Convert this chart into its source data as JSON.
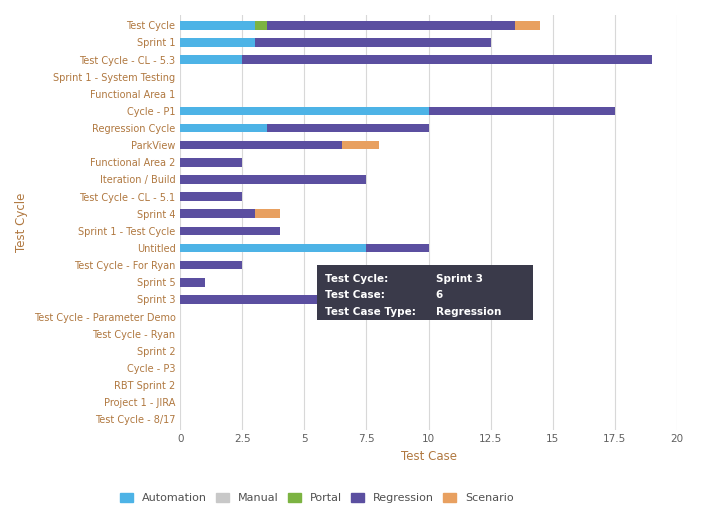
{
  "categories": [
    "Test Cycle",
    "Sprint 1",
    "Test Cycle - CL - 5.3",
    "Sprint 1 - System Testing",
    "Functional Area 1",
    "Cycle - P1",
    "Regression Cycle",
    "ParkView",
    "Functional Area 2",
    "Iteration / Build",
    "Test Cycle - CL - 5.1",
    "Sprint 4",
    "Sprint 1 - Test Cycle",
    "Untitled",
    "Test Cycle - For Ryan",
    "Sprint 5",
    "Sprint 3",
    "Test Cycle - Parameter Demo",
    "Test Cycle - Ryan",
    "Sprint 2",
    "Cycle - P3",
    "RBT Sprint 2",
    "Project 1 - JIRA",
    "Test Cycle - 8/17"
  ],
  "series": {
    "Automation": [
      3.0,
      3.0,
      2.5,
      0,
      0,
      10.0,
      3.5,
      0,
      0,
      0,
      0,
      0,
      0,
      7.5,
      0,
      0,
      0,
      0,
      0,
      0,
      0,
      0,
      0,
      0
    ],
    "Manual": [
      0,
      0,
      0,
      0,
      0,
      0,
      0,
      0,
      0,
      0,
      0,
      0,
      0,
      0,
      0,
      0,
      0,
      0,
      0,
      0,
      0,
      0,
      0,
      0
    ],
    "Portal": [
      0.5,
      0,
      0,
      0,
      0,
      0,
      0,
      0,
      0,
      0,
      0,
      0,
      0,
      0,
      0,
      0,
      0,
      0,
      0,
      0,
      0,
      0,
      0,
      0
    ],
    "Regression": [
      10.0,
      9.5,
      16.5,
      0,
      0,
      7.5,
      6.5,
      6.5,
      2.5,
      7.5,
      2.5,
      3.0,
      4.0,
      2.5,
      2.5,
      1.0,
      6.0,
      0,
      0,
      0,
      0,
      0,
      0,
      0
    ],
    "Scenario": [
      1.0,
      0,
      0,
      0,
      0,
      0,
      0,
      1.5,
      0,
      0,
      0,
      1.0,
      0,
      0,
      0,
      0,
      0,
      0,
      0,
      0,
      0,
      0,
      0,
      0
    ]
  },
  "colors": {
    "Automation": "#4db3e6",
    "Manual": "#c8c8c8",
    "Portal": "#7cb342",
    "Regression": "#5b4fa0",
    "Scenario": "#e8a060"
  },
  "xlabel": "Test Case",
  "ylabel": "Test Cycle",
  "xlim": [
    0,
    20
  ],
  "xticks": [
    0,
    2.5,
    5,
    7.5,
    10,
    12.5,
    15,
    17.5,
    20
  ],
  "xtick_labels": [
    "0",
    "2.5",
    "5",
    "7.5",
    "10",
    "12.5",
    "15",
    "17.5",
    "20"
  ],
  "axis_label_color": "#b07840",
  "y_tick_label_color": "#b07840",
  "x_tick_label_color": "#606060",
  "background_color": "#ffffff",
  "grid_color": "#d8d8d8",
  "tooltip_bg": "#3a3a4a",
  "tooltip_lines": [
    [
      "Test Cycle:",
      "Sprint 3"
    ],
    [
      "Test Case:",
      "6"
    ],
    [
      "Test Case Type:",
      "Regression"
    ]
  ]
}
